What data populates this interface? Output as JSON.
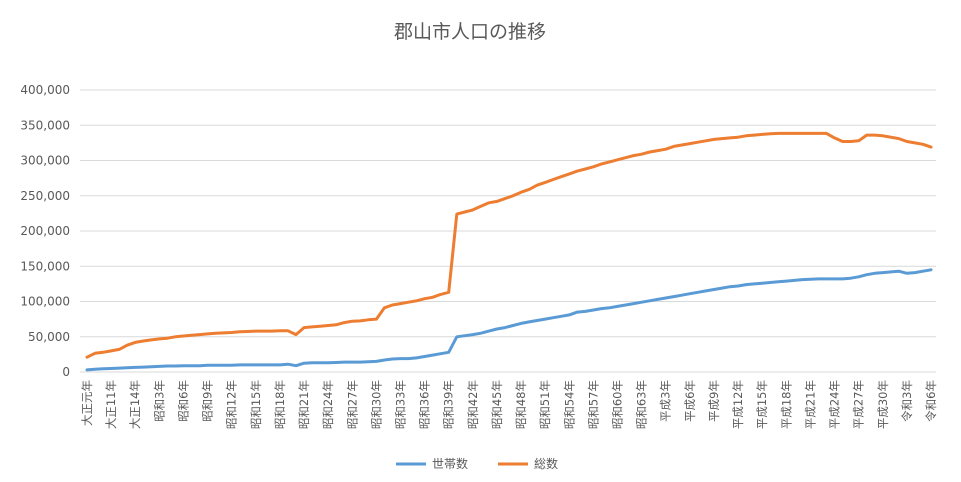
{
  "chart_data": {
    "type": "line",
    "title": "郡山市人口の推移",
    "xlabel": "",
    "ylabel": "",
    "ylim": [
      0,
      400000
    ],
    "y_ticks": [
      "0",
      "50,000",
      "100,000",
      "150,000",
      "200,000",
      "250,000",
      "300,000",
      "350,000",
      "400,000"
    ],
    "y_tick_values": [
      0,
      50000,
      100000,
      150000,
      200000,
      250000,
      300000,
      350000,
      400000
    ],
    "grid": true,
    "legend_position": "bottom",
    "tick_interval": 3,
    "tick_labels": [
      "大正元年",
      "大正11年",
      "大正14年",
      "昭和3年",
      "昭和6年",
      "昭和9年",
      "昭和12年",
      "昭和15年",
      "昭和18年",
      "昭和21年",
      "昭和24年",
      "昭和27年",
      "昭和30年",
      "昭和33年",
      "昭和36年",
      "昭和39年",
      "昭和42年",
      "昭和45年",
      "昭和48年",
      "昭和51年",
      "昭和54年",
      "昭和57年",
      "昭和60年",
      "昭和63年",
      "平成3年",
      "平成6年",
      "平成9年",
      "平成12年",
      "平成15年",
      "平成18年",
      "平成21年",
      "平成24年",
      "平成27年",
      "平成30年",
      "令和3年",
      "令和6年"
    ],
    "series": [
      {
        "name": "世帯数",
        "color": "#5B9BD5",
        "values": [
          3000,
          4000,
          4500,
          5000,
          5500,
          6000,
          6500,
          7000,
          7500,
          8000,
          8500,
          8500,
          9000,
          9000,
          9000,
          9500,
          9500,
          9500,
          9500,
          10000,
          10000,
          10000,
          10000,
          10000,
          10000,
          11000,
          9000,
          12500,
          13000,
          13000,
          13000,
          13500,
          14000,
          14000,
          14000,
          14500,
          15000,
          17000,
          18500,
          19000,
          19000,
          20000,
          22000,
          24000,
          26000,
          28000,
          50000,
          51500,
          53000,
          55000,
          58000,
          61000,
          63000,
          66000,
          69000,
          71000,
          73000,
          75000,
          77000,
          79000,
          81000,
          85000,
          86000,
          88000,
          90000,
          91000,
          93000,
          95000,
          97000,
          99000,
          101000,
          103000,
          105000,
          107000,
          109000,
          111000,
          113000,
          115000,
          117000,
          119000,
          121000,
          122000,
          124000,
          125000,
          126000,
          127000,
          128000,
          129000,
          130000,
          131000,
          131500,
          132000,
          132000,
          132000,
          132000,
          133000,
          135000,
          138000,
          140000,
          141000,
          142000,
          143000,
          140000,
          141000,
          143000,
          145000
        ]
      },
      {
        "name": "総数",
        "color": "#ED7D31",
        "values": [
          21000,
          26500,
          28000,
          30000,
          32000,
          38000,
          42000,
          44000,
          45500,
          47000,
          48000,
          50000,
          51000,
          52000,
          53000,
          54000,
          55000,
          55500,
          56000,
          57000,
          57500,
          58000,
          58000,
          58000,
          58500,
          58500,
          53000,
          63000,
          64000,
          65000,
          66000,
          67000,
          70000,
          72000,
          72500,
          74000,
          75000,
          91000,
          95000,
          97000,
          99000,
          101000,
          104000,
          106000,
          110000,
          113000,
          224000,
          227000,
          230000,
          235000,
          240000,
          242000,
          246000,
          250000,
          255000,
          259000,
          265000,
          269000,
          273000,
          277000,
          281000,
          285000,
          288000,
          291000,
          295000,
          298000,
          301000,
          304000,
          307000,
          309000,
          312000,
          314000,
          316000,
          320000,
          322000,
          324000,
          326000,
          328000,
          330000,
          331000,
          332000,
          333000,
          335000,
          336000,
          337000,
          338000,
          338500,
          338500,
          338500,
          338500,
          338500,
          338500,
          338500,
          332000,
          327000,
          327000,
          328000,
          336000,
          336000,
          335000,
          333000,
          331000,
          327000,
          325000,
          323000,
          319000
        ]
      }
    ]
  }
}
